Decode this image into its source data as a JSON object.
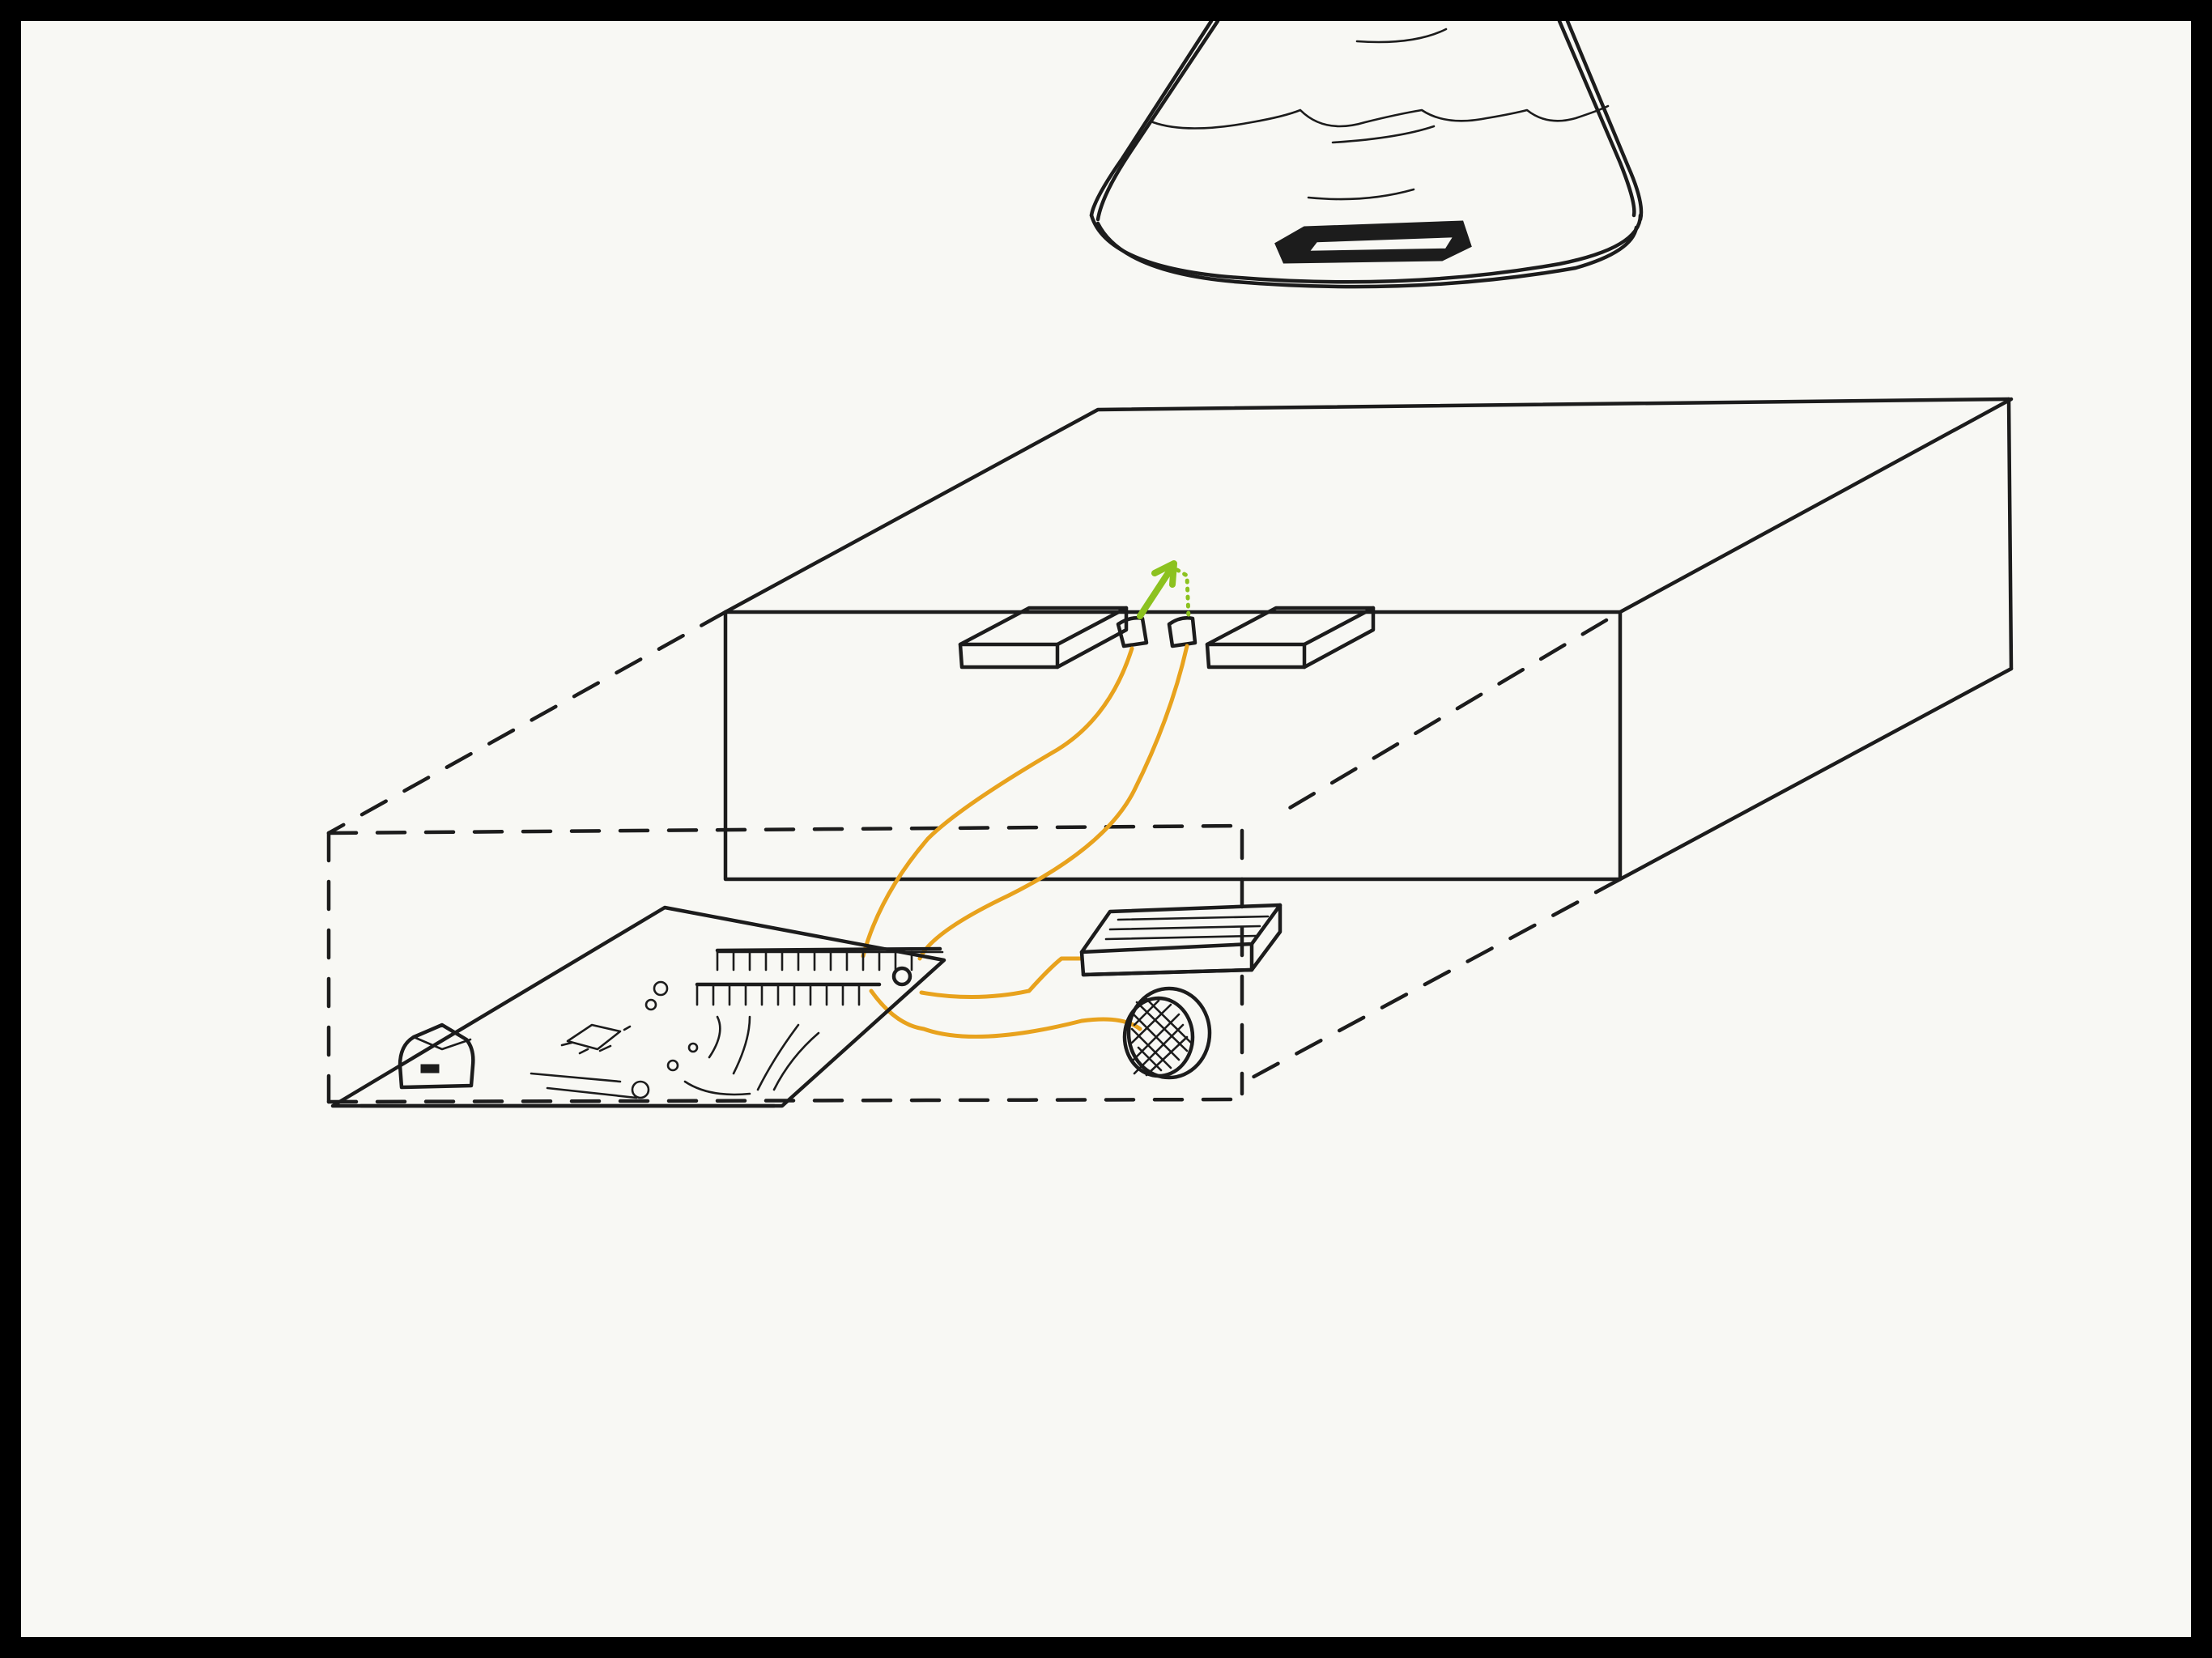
{
  "canvas": {
    "background": "#f8f8f4",
    "frame_color": "#000000"
  },
  "colors": {
    "ink": "#1c1c1c",
    "wire": "#e8a21d",
    "arrow": "#8cc21f"
  },
  "icons": [
    "lamp-shade-icon",
    "enclosure-box-icon",
    "touch-pad-icon",
    "wire-icon",
    "arrow-up-icon",
    "circuit-board-icon",
    "usb-port-icon",
    "speaker-icon",
    "battery-holder-icon"
  ]
}
